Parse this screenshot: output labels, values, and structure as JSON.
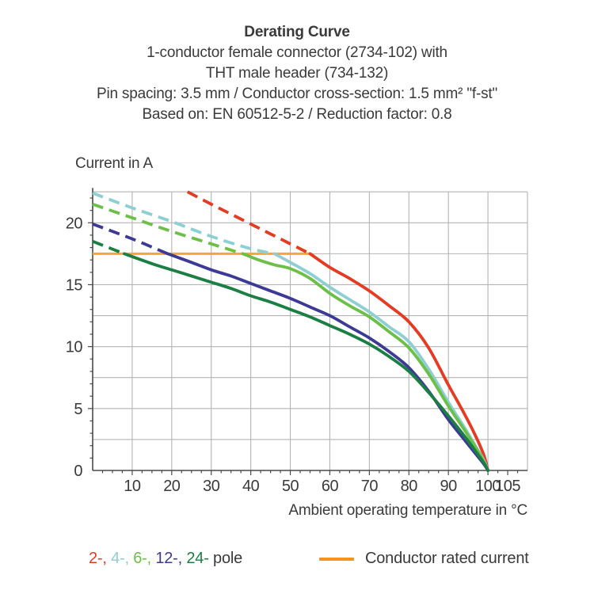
{
  "title": {
    "line1": "Derating Curve",
    "line2": "1-conductor female connector (2734-102) with",
    "line3": "THT male header (734-132)",
    "line4": "Pin spacing: 3.5 mm / Conductor cross-section: 1.5 mm² \"f-st\"",
    "line5": "Based on: EN 60512-5-2 / Reduction factor: 0.8"
  },
  "legend": {
    "parts": [
      {
        "text": "2-,",
        "color": "#e63b23"
      },
      {
        "text": " 4-,",
        "color": "#8ecfd4"
      },
      {
        "text": " 6-,",
        "color": "#6cbf47"
      },
      {
        "text": " 12-,",
        "color": "#3c3a96"
      },
      {
        "text": " 24-",
        "color": "#1b7f44"
      },
      {
        "text": " pole",
        "color": "#3a3a3a"
      }
    ],
    "rated_label": "Conductor rated current",
    "rated_color": "#f6921e"
  },
  "chart_data": {
    "type": "line",
    "title": "Derating Curve",
    "xlabel": "Ambient operating temperature in °C",
    "ylabel": "Current in A",
    "xlim": [
      0,
      110
    ],
    "ylim": [
      0,
      22.5
    ],
    "x_grid_step": 10,
    "y_grid_step": 2.5,
    "grid": true,
    "grid_color": "#b4b4b4",
    "axis_color": "#4a4a4a",
    "label_color": "#3a3a3a",
    "x_tick_labels": [
      10,
      20,
      30,
      40,
      50,
      60,
      70,
      80,
      90,
      100,
      105
    ],
    "y_tick_labels": [
      0,
      5,
      10,
      15,
      20
    ],
    "x_minor_step": 2.5,
    "y_minor_step": 1,
    "rated_current": {
      "label": "Conductor rated current",
      "value": 17.5,
      "x_start": 0,
      "x_end": 55,
      "color": "#f8a537"
    },
    "dash_note": "curves are dashed above the conductor rated current and solid below it",
    "series": [
      {
        "name": "2-pole",
        "color": "#e63b23",
        "solid_from_temp": 55,
        "points": [
          [
            24,
            22.5
          ],
          [
            30,
            21.5
          ],
          [
            35,
            20.7
          ],
          [
            40,
            19.9
          ],
          [
            45,
            19.1
          ],
          [
            50,
            18.3
          ],
          [
            55,
            17.5
          ],
          [
            60,
            16.4
          ],
          [
            65,
            15.5
          ],
          [
            70,
            14.5
          ],
          [
            75,
            13.3
          ],
          [
            80,
            12.0
          ],
          [
            85,
            9.9
          ],
          [
            90,
            6.9
          ],
          [
            94,
            4.6
          ],
          [
            97,
            2.7
          ],
          [
            99,
            1.2
          ],
          [
            100,
            0
          ]
        ]
      },
      {
        "name": "4-pole",
        "color": "#8ecfd4",
        "solid_from_temp": 46,
        "points": [
          [
            0,
            22.4
          ],
          [
            10,
            21.2
          ],
          [
            20,
            20.1
          ],
          [
            30,
            18.9
          ],
          [
            40,
            17.9
          ],
          [
            46,
            17.5
          ],
          [
            50,
            16.8
          ],
          [
            55,
            15.9
          ],
          [
            60,
            14.8
          ],
          [
            65,
            13.8
          ],
          [
            70,
            12.8
          ],
          [
            75,
            11.6
          ],
          [
            80,
            10.4
          ],
          [
            85,
            8.2
          ],
          [
            90,
            5.5
          ],
          [
            94,
            3.5
          ],
          [
            97,
            1.9
          ],
          [
            99,
            0.8
          ],
          [
            100,
            0
          ]
        ]
      },
      {
        "name": "6-pole",
        "color": "#6cbf47",
        "solid_from_temp": 38,
        "points": [
          [
            0,
            21.5
          ],
          [
            10,
            20.4
          ],
          [
            20,
            19.3
          ],
          [
            30,
            18.3
          ],
          [
            38,
            17.5
          ],
          [
            42,
            17.0
          ],
          [
            46,
            16.6
          ],
          [
            50,
            16.3
          ],
          [
            55,
            15.5
          ],
          [
            60,
            14.3
          ],
          [
            65,
            13.3
          ],
          [
            70,
            12.4
          ],
          [
            75,
            11.2
          ],
          [
            80,
            9.9
          ],
          [
            85,
            7.8
          ],
          [
            90,
            5.2
          ],
          [
            94,
            3.3
          ],
          [
            97,
            1.8
          ],
          [
            99,
            0.7
          ],
          [
            100,
            0
          ]
        ]
      },
      {
        "name": "12-pole",
        "color": "#3c3a96",
        "solid_from_temp": 19,
        "points": [
          [
            0,
            19.9
          ],
          [
            10,
            18.7
          ],
          [
            19,
            17.5
          ],
          [
            25,
            16.8
          ],
          [
            30,
            16.2
          ],
          [
            35,
            15.7
          ],
          [
            40,
            15.1
          ],
          [
            45,
            14.5
          ],
          [
            50,
            13.9
          ],
          [
            55,
            13.2
          ],
          [
            60,
            12.5
          ],
          [
            65,
            11.6
          ],
          [
            70,
            10.7
          ],
          [
            75,
            9.6
          ],
          [
            80,
            8.3
          ],
          [
            85,
            6.4
          ],
          [
            90,
            4.1
          ],
          [
            94,
            2.5
          ],
          [
            97,
            1.3
          ],
          [
            99,
            0.5
          ],
          [
            100,
            0
          ]
        ]
      },
      {
        "name": "24-pole",
        "color": "#1b7f44",
        "solid_from_temp": 8,
        "points": [
          [
            0,
            18.5
          ],
          [
            4,
            18.0
          ],
          [
            8,
            17.5
          ],
          [
            15,
            16.7
          ],
          [
            20,
            16.2
          ],
          [
            25,
            15.7
          ],
          [
            30,
            15.2
          ],
          [
            35,
            14.7
          ],
          [
            40,
            14.1
          ],
          [
            45,
            13.6
          ],
          [
            50,
            13.0
          ],
          [
            55,
            12.4
          ],
          [
            60,
            11.7
          ],
          [
            65,
            11.0
          ],
          [
            70,
            10.2
          ],
          [
            75,
            9.2
          ],
          [
            80,
            8.0
          ],
          [
            85,
            6.3
          ],
          [
            90,
            4.4
          ],
          [
            94,
            2.8
          ],
          [
            97,
            1.5
          ],
          [
            99,
            0.6
          ],
          [
            100,
            0
          ]
        ]
      }
    ]
  }
}
